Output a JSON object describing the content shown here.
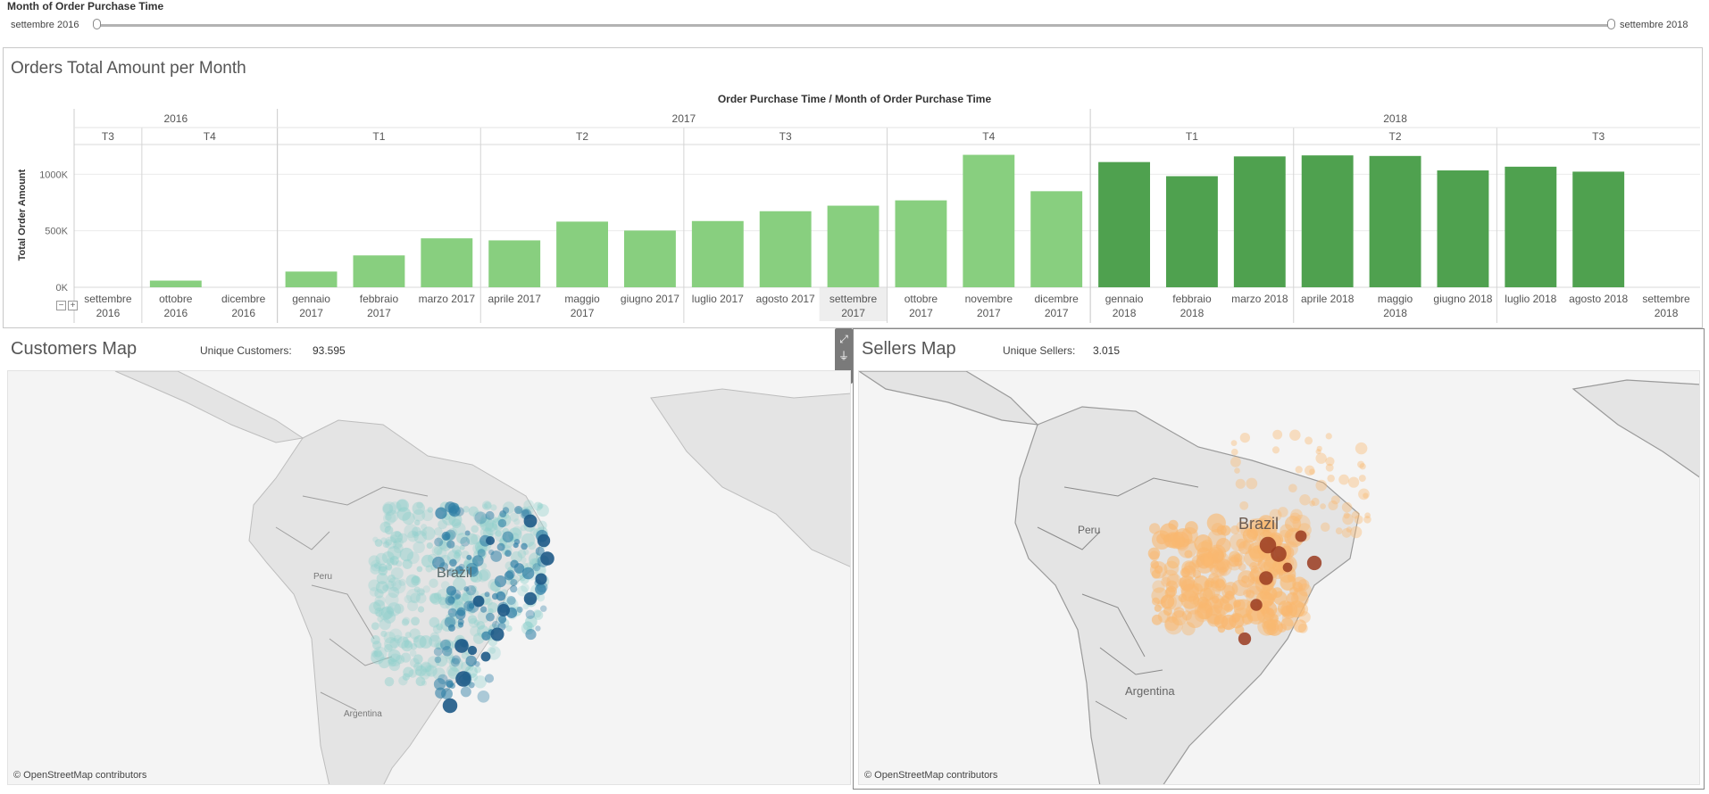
{
  "filter": {
    "title": "Month of Order Purchase Time",
    "min_label": "settembre 2016",
    "max_label": "settembre 2018",
    "range_fraction": [
      0.0,
      1.0
    ]
  },
  "chart": {
    "title": "Orders Total Amount per Month",
    "header": "Order Purchase Time  /  Month of Order Purchase Time",
    "collapse_symbol": "−",
    "expand_symbol": "+"
  },
  "chart_data": {
    "type": "bar",
    "title": "Orders Total Amount per Month",
    "xlabel": "Order Purchase Time / Month of Order Purchase Time",
    "ylabel": "Total Order Amount",
    "ylim": [
      0,
      1200000
    ],
    "yticks": [
      {
        "value": 0,
        "label": "0K"
      },
      {
        "value": 500000,
        "label": "500K"
      },
      {
        "value": 1000000,
        "label": "1000K"
      }
    ],
    "years": [
      {
        "label": "2016",
        "quarters": [
          {
            "label": "T3",
            "months": 1
          },
          {
            "label": "T4",
            "months": 2
          }
        ]
      },
      {
        "label": "2017",
        "quarters": [
          {
            "label": "T1",
            "months": 3
          },
          {
            "label": "T2",
            "months": 3
          },
          {
            "label": "T3",
            "months": 3
          },
          {
            "label": "T4",
            "months": 3
          }
        ]
      },
      {
        "label": "2018",
        "quarters": [
          {
            "label": "T1",
            "months": 3
          },
          {
            "label": "T2",
            "months": 3
          },
          {
            "label": "T3",
            "months": 3
          }
        ]
      }
    ],
    "categories": [
      [
        "settembre",
        "2016"
      ],
      [
        "ottobre",
        "2016"
      ],
      [
        "dicembre",
        "2016"
      ],
      [
        "gennaio",
        "2017"
      ],
      [
        "febbraio",
        "2017"
      ],
      [
        "marzo 2017"
      ],
      [
        "aprile 2017"
      ],
      [
        "maggio",
        "2017"
      ],
      [
        "giugno 2017"
      ],
      [
        "luglio 2017"
      ],
      [
        "agosto 2017"
      ],
      [
        "settembre",
        "2017"
      ],
      [
        "ottobre",
        "2017"
      ],
      [
        "novembre",
        "2017"
      ],
      [
        "dicembre",
        "2017"
      ],
      [
        "gennaio",
        "2018"
      ],
      [
        "febbraio",
        "2018"
      ],
      [
        "marzo 2018"
      ],
      [
        "aprile 2018"
      ],
      [
        "maggio",
        "2018"
      ],
      [
        "giugno 2018"
      ],
      [
        "luglio 2018"
      ],
      [
        "agosto 2018"
      ],
      [
        "settembre",
        "2018"
      ]
    ],
    "values": [
      0,
      59000,
      0,
      139000,
      282000,
      433000,
      415000,
      581000,
      502000,
      586000,
      673000,
      722000,
      769000,
      1172000,
      850000,
      1108000,
      983000,
      1158000,
      1167000,
      1162000,
      1034000,
      1067000,
      1023000,
      0
    ],
    "colors": [
      "#88cf7f",
      "#88cf7f",
      "#88cf7f",
      "#88cf7f",
      "#88cf7f",
      "#88cf7f",
      "#88cf7f",
      "#88cf7f",
      "#88cf7f",
      "#88cf7f",
      "#88cf7f",
      "#88cf7f",
      "#88cf7f",
      "#88cf7f",
      "#88cf7f",
      "#4fa14f",
      "#4fa14f",
      "#4fa14f",
      "#4fa14f",
      "#4fa14f",
      "#4fa14f",
      "#4fa14f",
      "#4fa14f",
      "#4fa14f"
    ],
    "highlight_index": 11
  },
  "customers_map": {
    "title": "Customers Map",
    "metric_label": "Unique Customers:",
    "metric_value": "93.595",
    "labels": [
      "Brazil",
      "Peru",
      "Argentina"
    ],
    "attribution": "© OpenStreetMap contributors",
    "color_light": "#8fd0cc",
    "color_dark": "#1e5a87"
  },
  "sellers_map": {
    "title": "Sellers Map",
    "metric_label": "Unique Sellers:",
    "metric_value": "3.015",
    "labels": [
      "Brazil",
      "Peru",
      "Argentina"
    ],
    "attribution": "© OpenStreetMap contributors",
    "color_light": "#f9b870",
    "color_dark": "#9a3b20"
  },
  "toolbar": {
    "icons": [
      "popout-icon",
      "filter-icon",
      "more-options-icon"
    ],
    "glyphs": [
      "⤢",
      "⏚",
      "▾"
    ]
  }
}
